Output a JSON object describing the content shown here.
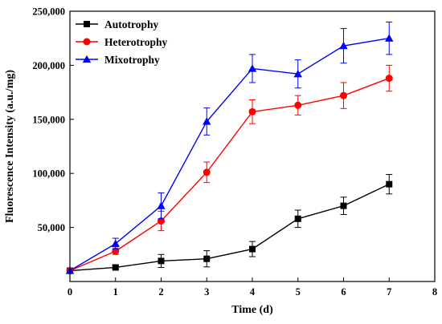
{
  "chart_data": {
    "type": "line",
    "title": "",
    "xlabel": "Time (d)",
    "ylabel": "Fluorescence Intensity (a.u./mg)",
    "xlim": [
      0,
      8
    ],
    "ylim": [
      0,
      250000
    ],
    "x_ticks": [
      0,
      1,
      2,
      3,
      4,
      5,
      6,
      7,
      8
    ],
    "x_tick_labels": [
      "0",
      "1",
      "2",
      "3",
      "4",
      "5",
      "6",
      "7",
      "8"
    ],
    "y_ticks": [
      50000,
      100000,
      150000,
      200000,
      250000
    ],
    "y_tick_labels": [
      "50,000",
      "100,000",
      "150,000",
      "200,000",
      "250,000"
    ],
    "grid": false,
    "legend_position": "top-left",
    "x": [
      0,
      1,
      2,
      3,
      4,
      5,
      6,
      7
    ],
    "series": [
      {
        "name": "Autotrophy",
        "color": "#000000",
        "marker": "square",
        "values": [
          10000,
          13000,
          19000,
          21000,
          30000,
          58000,
          70000,
          90000
        ],
        "errors": [
          0,
          1500,
          6000,
          7500,
          7000,
          8000,
          8000,
          9000
        ]
      },
      {
        "name": "Heterotrophy",
        "color": "#ff0000",
        "marker": "circle",
        "values": [
          10000,
          28000,
          56000,
          101000,
          157000,
          163000,
          172000,
          188000
        ],
        "errors": [
          0,
          3000,
          9000,
          9500,
          11000,
          9000,
          12000,
          12000
        ]
      },
      {
        "name": "Mixotrophy",
        "color": "#0000ff",
        "marker": "triangle",
        "values": [
          10000,
          35000,
          70000,
          148000,
          197000,
          192000,
          218000,
          225000
        ],
        "errors": [
          0,
          5000,
          12000,
          12500,
          13000,
          13000,
          16000,
          15000
        ]
      }
    ]
  }
}
